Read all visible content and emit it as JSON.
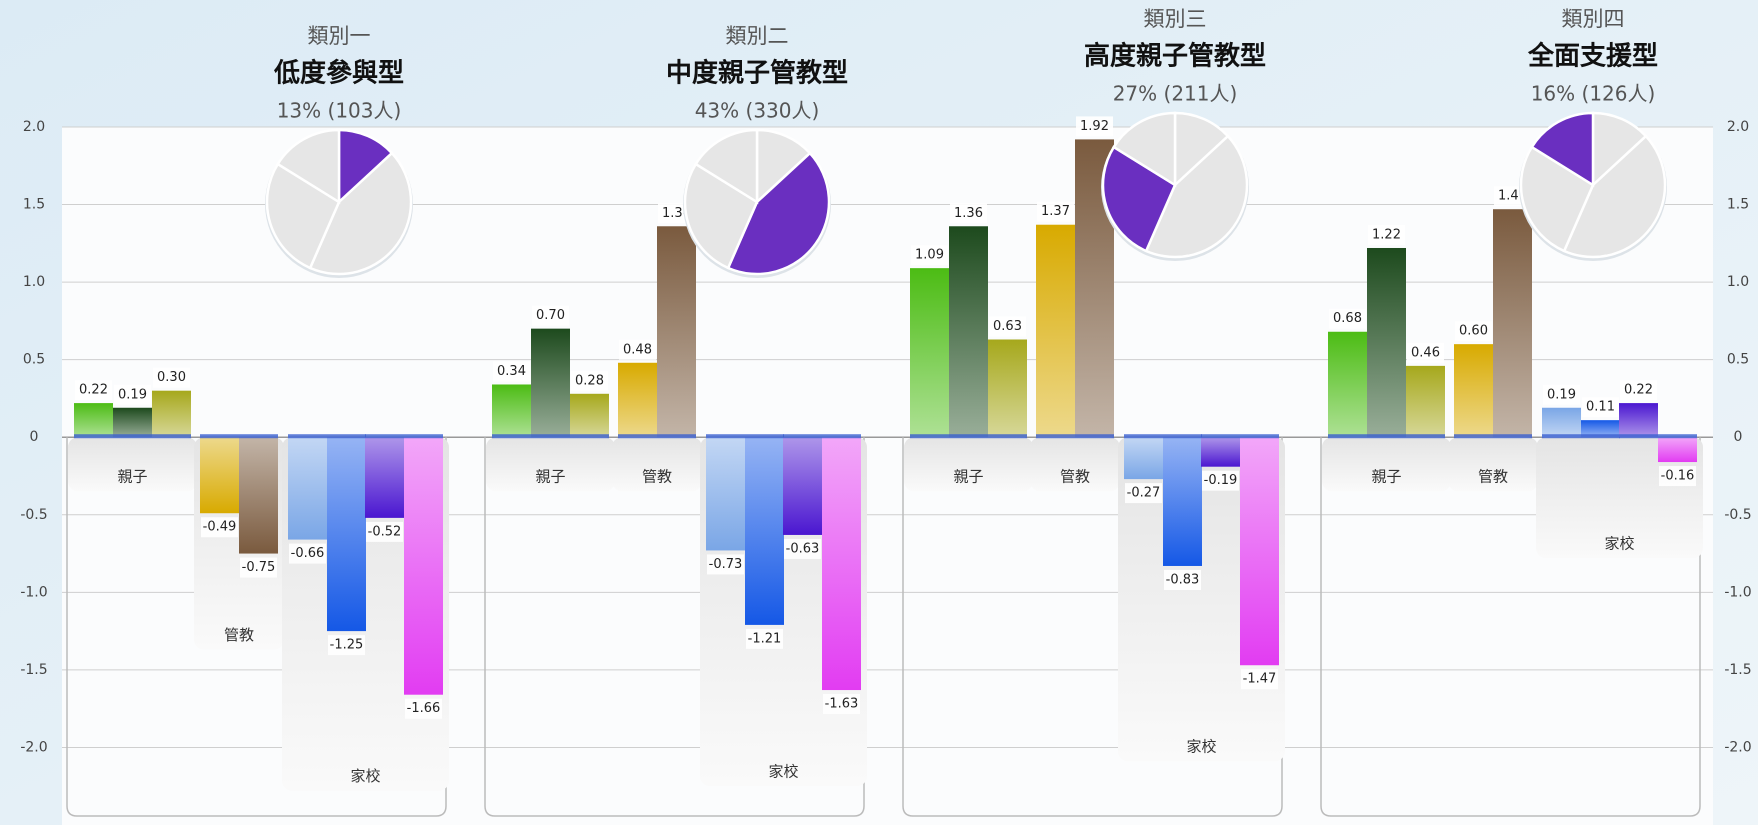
{
  "chart_data": {
    "type": "bar",
    "ylim": [
      -2.5,
      2
    ],
    "yticks": [
      {
        "value": 2,
        "label": "2.0"
      },
      1.5,
      {
        "value": 1,
        "label": "1.0"
      },
      0.5,
      0,
      -0.5,
      {
        "value": -1,
        "label": "-1.0"
      },
      -1.5,
      {
        "value": -2,
        "label": "-2.0"
      }
    ],
    "grid": true,
    "colors": [
      [
        "#4cbc14",
        "#1d4a1d",
        "#a6a81c"
      ],
      [
        "#d8aa00",
        "#7a5a3e"
      ],
      [
        "#7aa6e6",
        "#1558e6",
        "#4a16d0",
        "#e23cf2"
      ]
    ],
    "highlight_color": "#6a2fc0",
    "clusters": [
      {
        "label": "類別一",
        "name": "低度參與型",
        "share": 13,
        "share_label": "13% (103人)",
        "categories": [
          "親子",
          "管教",
          "家校"
        ],
        "values": [
          [
            0.22,
            0.19,
            0.3
          ],
          [
            -0.49,
            -0.75
          ],
          [
            -0.66,
            -1.25,
            -0.52,
            -1.66
          ]
        ],
        "value_labels": [
          [
            "0.22",
            "0.19",
            "0.30"
          ],
          [
            "-0.49",
            "-0.75"
          ],
          [
            "-0.66",
            "-1.25",
            "-0.52",
            "-1.66"
          ]
        ]
      },
      {
        "label": "類別二",
        "name": "中度親子管教型",
        "share": 43,
        "share_label": "43% (330人)",
        "categories": [
          "親子",
          "管教",
          "家校"
        ],
        "values": [
          [
            0.34,
            0.7,
            0.28
          ],
          [
            0.48,
            1.36
          ],
          [
            -0.73,
            -1.21,
            -0.63,
            -1.63
          ]
        ],
        "value_labels": [
          [
            "0.34",
            "0.70",
            "0.28"
          ],
          [
            "0.48",
            "1.36"
          ],
          [
            "-0.73",
            "-1.21",
            "-0.63",
            "-1.63"
          ]
        ]
      },
      {
        "label": "類別三",
        "name": "高度親子管教型",
        "share": 27,
        "share_label": "27% (211人)",
        "categories": [
          "親子",
          "管教",
          "家校"
        ],
        "values": [
          [
            1.09,
            1.36,
            0.63
          ],
          [
            1.37,
            1.92
          ],
          [
            -0.27,
            -0.83,
            -0.19,
            -1.47
          ]
        ],
        "value_labels": [
          [
            "1.09",
            "1.36",
            "0.63"
          ],
          [
            "1.37",
            "1.92"
          ],
          [
            "-0.27",
            "-0.83",
            "-0.19",
            "-1.47"
          ]
        ]
      },
      {
        "label": "類別四",
        "name": "全面支援型",
        "share": 16,
        "share_label": "16% (126人)",
        "categories": [
          "親子",
          "管教",
          "家校"
        ],
        "values": [
          [
            0.68,
            1.22,
            0.46
          ],
          [
            0.6,
            1.47
          ],
          [
            0.19,
            0.11,
            0.22,
            -0.16
          ]
        ],
        "value_labels": [
          [
            "0.68",
            "1.22",
            "0.46"
          ],
          [
            "0.60",
            "1.47"
          ],
          [
            "0.19",
            "0.11",
            "0.22",
            "-0.16"
          ]
        ]
      }
    ]
  }
}
